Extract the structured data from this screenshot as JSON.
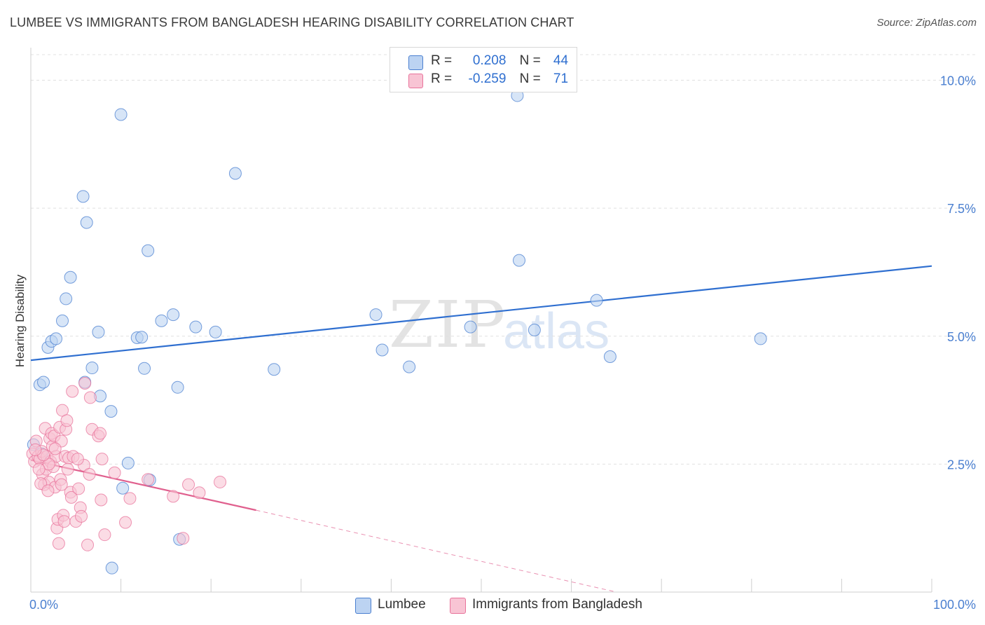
{
  "title": "LUMBEE VS IMMIGRANTS FROM BANGLADESH HEARING DISABILITY CORRELATION CHART",
  "source": "Source: ZipAtlas.com",
  "watermark": {
    "zip": "ZIP",
    "atlas": "atlas"
  },
  "colors": {
    "blue": "#4a7fd0",
    "blue_fill": "#bcd3f2",
    "blue_line": "#2f6fd0",
    "pink": "#e8739b",
    "pink_fill": "#f8c4d4",
    "pink_line": "#e0608e",
    "grid": "#e0e0e0"
  },
  "legend": {
    "rows": [
      {
        "r_label": "R =",
        "r_value": "0.208",
        "n_label": "N =",
        "n_value": "44"
      },
      {
        "r_label": "R =",
        "r_value": "-0.259",
        "n_label": "N =",
        "n_value": "71"
      }
    ]
  },
  "bottom_legend": {
    "series1": "Lumbee",
    "series2": "Immigrants from Bangladesh"
  },
  "chart_data": {
    "type": "scatter",
    "title": "LUMBEE VS IMMIGRANTS FROM BANGLADESH HEARING DISABILITY CORRELATION CHART",
    "xlabel": "",
    "ylabel": "Hearing Disability",
    "xlim": [
      0,
      100
    ],
    "ylim": [
      0,
      10.5
    ],
    "x_tick_labels": [
      "0.0%",
      "100.0%"
    ],
    "y_ticks": [
      2.5,
      5.0,
      7.5,
      10.0
    ],
    "y_tick_labels": [
      "2.5%",
      "5.0%",
      "7.5%",
      "10.0%"
    ],
    "grid": true,
    "series": [
      {
        "name": "Lumbee",
        "r": 0.208,
        "n": 44,
        "trend": {
          "x": [
            0,
            100
          ],
          "y": [
            4.53,
            6.37
          ],
          "dashed_from": null
        },
        "points": [
          [
            1.0,
            4.05
          ],
          [
            1.4,
            4.1
          ],
          [
            1.9,
            4.78
          ],
          [
            2.3,
            4.9
          ],
          [
            2.8,
            4.95
          ],
          [
            3.5,
            5.3
          ],
          [
            3.9,
            5.73
          ],
          [
            4.4,
            6.15
          ],
          [
            6.2,
            7.22
          ],
          [
            6.0,
            4.1
          ],
          [
            6.8,
            4.38
          ],
          [
            7.5,
            5.08
          ],
          [
            5.8,
            7.73
          ],
          [
            7.7,
            3.83
          ],
          [
            8.9,
            3.53
          ],
          [
            10.0,
            9.33
          ],
          [
            9.0,
            0.47
          ],
          [
            10.8,
            2.52
          ],
          [
            10.2,
            2.03
          ],
          [
            11.8,
            4.97
          ],
          [
            12.3,
            4.98
          ],
          [
            12.6,
            4.37
          ],
          [
            13.2,
            2.19
          ],
          [
            13.0,
            6.67
          ],
          [
            14.5,
            5.3
          ],
          [
            15.8,
            5.42
          ],
          [
            16.3,
            4.0
          ],
          [
            16.5,
            1.03
          ],
          [
            18.3,
            5.18
          ],
          [
            20.5,
            5.08
          ],
          [
            22.7,
            8.18
          ],
          [
            27.0,
            4.35
          ],
          [
            38.3,
            5.42
          ],
          [
            39.0,
            4.73
          ],
          [
            42.0,
            4.4
          ],
          [
            48.8,
            5.18
          ],
          [
            54.0,
            9.7
          ],
          [
            54.2,
            6.48
          ],
          [
            55.9,
            5.12
          ],
          [
            62.8,
            5.7
          ],
          [
            64.3,
            4.6
          ],
          [
            81.0,
            4.95
          ],
          [
            0.3,
            2.88
          ],
          [
            1.2,
            2.7
          ]
        ]
      },
      {
        "name": "Immigrants from Bangladesh",
        "r": -0.259,
        "n": 71,
        "trend": {
          "x": [
            0,
            25,
            65
          ],
          "y": [
            2.58,
            1.6,
            0.0
          ],
          "dashed_from": 25
        },
        "points": [
          [
            0.2,
            2.7
          ],
          [
            0.4,
            2.55
          ],
          [
            0.6,
            2.95
          ],
          [
            0.8,
            2.65
          ],
          [
            1.0,
            2.6
          ],
          [
            1.2,
            2.75
          ],
          [
            1.3,
            2.3
          ],
          [
            1.5,
            2.1
          ],
          [
            1.6,
            3.2
          ],
          [
            1.7,
            2.4
          ],
          [
            1.8,
            2.65
          ],
          [
            2.0,
            2.15
          ],
          [
            2.1,
            3.0
          ],
          [
            2.2,
            2.55
          ],
          [
            2.3,
            3.1
          ],
          [
            2.4,
            2.85
          ],
          [
            2.5,
            2.45
          ],
          [
            2.6,
            3.05
          ],
          [
            2.7,
            2.05
          ],
          [
            2.8,
            2.65
          ],
          [
            2.9,
            1.25
          ],
          [
            3.0,
            1.42
          ],
          [
            3.1,
            0.95
          ],
          [
            3.2,
            3.22
          ],
          [
            3.3,
            2.2
          ],
          [
            3.4,
            2.95
          ],
          [
            3.5,
            3.55
          ],
          [
            3.6,
            1.5
          ],
          [
            3.7,
            1.38
          ],
          [
            3.8,
            2.65
          ],
          [
            3.9,
            3.18
          ],
          [
            4.0,
            3.35
          ],
          [
            4.2,
            2.62
          ],
          [
            4.4,
            1.95
          ],
          [
            4.5,
            1.85
          ],
          [
            4.6,
            3.92
          ],
          [
            4.7,
            2.65
          ],
          [
            5.0,
            1.38
          ],
          [
            5.3,
            2.02
          ],
          [
            5.5,
            1.65
          ],
          [
            5.6,
            1.48
          ],
          [
            5.9,
            2.48
          ],
          [
            6.0,
            4.08
          ],
          [
            6.3,
            0.92
          ],
          [
            6.6,
            3.8
          ],
          [
            6.8,
            3.18
          ],
          [
            7.5,
            3.05
          ],
          [
            7.7,
            3.1
          ],
          [
            7.8,
            1.8
          ],
          [
            7.9,
            2.6
          ],
          [
            8.2,
            1.12
          ],
          [
            9.3,
            2.33
          ],
          [
            10.5,
            1.36
          ],
          [
            11.0,
            1.83
          ],
          [
            13.0,
            2.2
          ],
          [
            15.8,
            1.87
          ],
          [
            16.9,
            1.05
          ],
          [
            17.5,
            2.1
          ],
          [
            18.7,
            1.94
          ],
          [
            21.0,
            2.15
          ],
          [
            1.1,
            2.12
          ],
          [
            2.0,
            2.5
          ],
          [
            1.4,
            2.68
          ],
          [
            0.9,
            2.4
          ],
          [
            3.4,
            2.1
          ],
          [
            2.7,
            2.8
          ],
          [
            4.1,
            2.4
          ],
          [
            5.2,
            2.6
          ],
          [
            6.5,
            2.3
          ],
          [
            1.9,
            1.98
          ],
          [
            0.5,
            2.78
          ]
        ]
      }
    ]
  }
}
